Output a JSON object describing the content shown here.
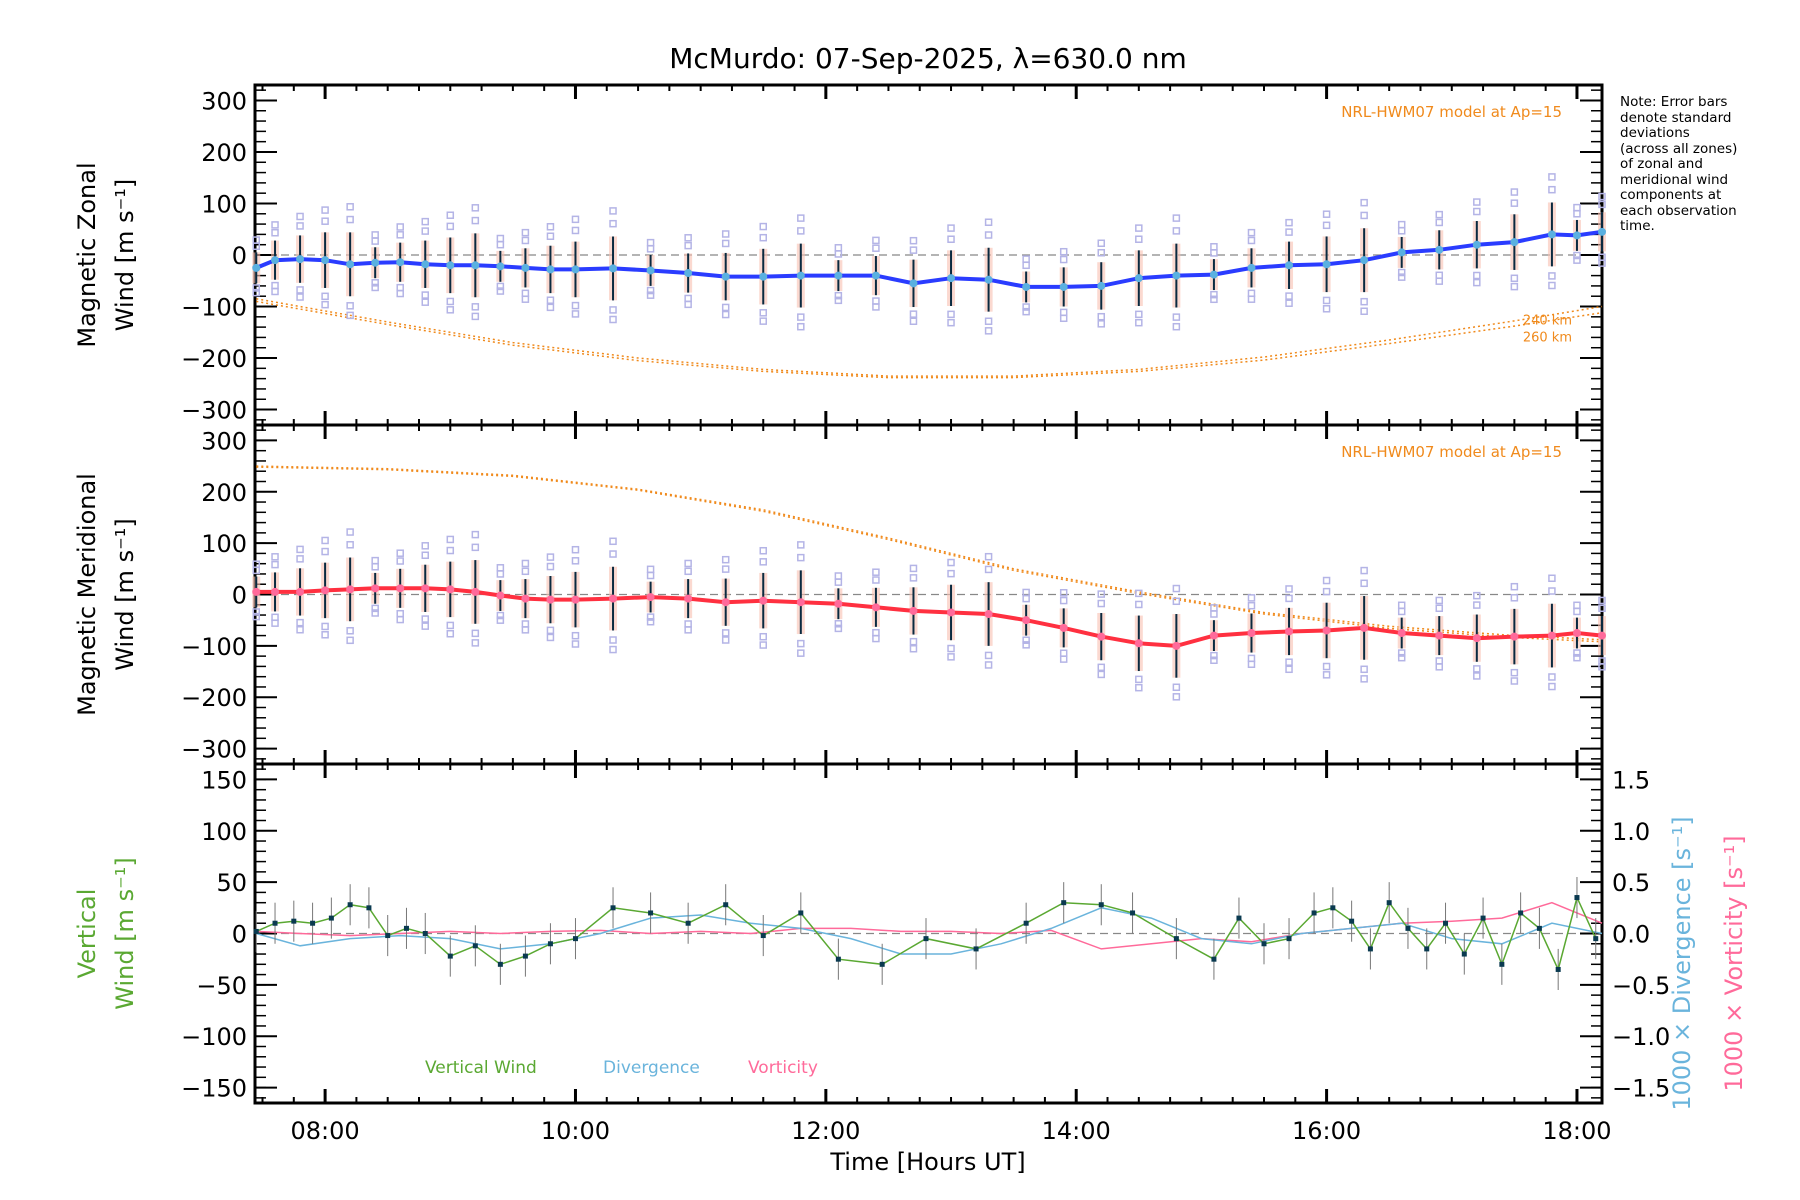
{
  "chart_data": {
    "type": "line",
    "title": "McMurdo: 07-Sep-2025, λ=630.0 nm",
    "xlabel": "Time [Hours UT]",
    "xlim_hours": [
      7.44,
      18.2
    ],
    "x_ticks": [
      {
        "value": 8,
        "label": "08:00"
      },
      {
        "value": 10,
        "label": "10:00"
      },
      {
        "value": 12,
        "label": "12:00"
      },
      {
        "value": 14,
        "label": "14:00"
      },
      {
        "value": 16,
        "label": "16:00"
      },
      {
        "value": 18,
        "label": "18:00"
      }
    ],
    "note": "Note: Error bars denote standard deviations (across all zones) of zonal and meridional wind components at each observation time.",
    "note_lines": [
      "Note: Error bars",
      "denote standard",
      "deviations",
      "(across all zones)",
      "of zonal and",
      "meridional wind",
      "components at",
      "each observation",
      "time."
    ],
    "colors": {
      "zonal": "#2a3cff",
      "zonal_points": "#5ab0e0",
      "meridional": "#ff3040",
      "meridional_points": "#ff6a9a",
      "model": "#f08a1c",
      "vertical": "#5aa832",
      "divergence": "#6ab4dc",
      "vorticity": "#ff6a9a",
      "zone_points": "#b4b4e6",
      "errorbar": "#0a2a40"
    },
    "panels": [
      {
        "id": "zonal",
        "ylabel_line1": "Magnetic Zonal",
        "ylabel_line2": "Wind [m s⁻¹]",
        "ylim": [
          -330,
          330
        ],
        "y_ticks": [
          300,
          200,
          100,
          0,
          -100,
          -200,
          -300
        ],
        "model_label": "NRL-HWM07 model at Ap=15",
        "model_altitudes": [
          "240 km",
          "260 km"
        ],
        "series": [
          {
            "name": "Zonal wind",
            "x": [
              7.45,
              7.6,
              7.8,
              8.0,
              8.2,
              8.4,
              8.6,
              8.8,
              9.0,
              9.2,
              9.4,
              9.6,
              9.8,
              10.0,
              10.3,
              10.6,
              10.9,
              11.2,
              11.5,
              11.8,
              12.1,
              12.4,
              12.7,
              13.0,
              13.3,
              13.6,
              13.9,
              14.2,
              14.5,
              14.8,
              15.1,
              15.4,
              15.7,
              16.0,
              16.3,
              16.6,
              16.9,
              17.2,
              17.5,
              17.8,
              18.0,
              18.2
            ],
            "y": [
              -25,
              -10,
              -8,
              -10,
              -18,
              -15,
              -14,
              -18,
              -20,
              -20,
              -22,
              -25,
              -28,
              -28,
              -26,
              -30,
              -35,
              -42,
              -42,
              -40,
              -40,
              -40,
              -55,
              -45,
              -48,
              -62,
              -62,
              -60,
              -45,
              -40,
              -38,
              -25,
              -20,
              -18,
              -10,
              5,
              10,
              20,
              25,
              40,
              38,
              45
            ]
          },
          {
            "name": "Model 240 km",
            "x": [
              7.45,
              8.5,
              9.5,
              10.5,
              11.5,
              12.5,
              13.5,
              14.5,
              15.5,
              16.5,
              17.5,
              18.2
            ],
            "y": [
              -85,
              -130,
              -170,
              -200,
              -222,
              -235,
              -235,
              -222,
              -198,
              -165,
              -128,
              -100
            ]
          },
          {
            "name": "Model 260 km",
            "x": [
              7.45,
              8.5,
              9.5,
              10.5,
              11.5,
              12.5,
              13.5,
              14.5,
              15.5,
              16.5,
              17.5,
              18.2
            ],
            "y": [
              -90,
              -135,
              -175,
              -205,
              -226,
              -238,
              -238,
              -226,
              -204,
              -172,
              -138,
              -112
            ]
          }
        ]
      },
      {
        "id": "meridional",
        "ylabel_line1": "Magnetic Meridional",
        "ylabel_line2": "Wind [m s⁻¹]",
        "ylim": [
          -330,
          330
        ],
        "y_ticks": [
          300,
          200,
          100,
          0,
          -100,
          -200,
          -300
        ],
        "model_label": "NRL-HWM07 model at Ap=15",
        "series": [
          {
            "name": "Meridional wind",
            "x": [
              7.45,
              7.6,
              7.8,
              8.0,
              8.2,
              8.4,
              8.6,
              8.8,
              9.0,
              9.2,
              9.4,
              9.6,
              9.8,
              10.0,
              10.3,
              10.6,
              10.9,
              11.2,
              11.5,
              11.8,
              12.1,
              12.4,
              12.7,
              13.0,
              13.3,
              13.6,
              13.9,
              14.2,
              14.5,
              14.8,
              15.1,
              15.4,
              15.7,
              16.0,
              16.3,
              16.6,
              16.9,
              17.2,
              17.5,
              17.8,
              18.0,
              18.2
            ],
            "y": [
              5,
              5,
              5,
              8,
              10,
              12,
              12,
              12,
              10,
              5,
              -2,
              -8,
              -10,
              -10,
              -8,
              -5,
              -8,
              -15,
              -12,
              -15,
              -18,
              -25,
              -32,
              -35,
              -38,
              -50,
              -65,
              -82,
              -95,
              -100,
              -80,
              -75,
              -72,
              -70,
              -65,
              -75,
              -80,
              -85,
              -82,
              -80,
              -75,
              -80
            ]
          },
          {
            "name": "Model 240 km",
            "x": [
              7.45,
              8.5,
              9.5,
              10.5,
              11.5,
              12.5,
              13.5,
              14.5,
              15.5,
              16.5,
              17.5,
              18.2
            ],
            "y": [
              250,
              245,
              232,
              205,
              165,
              110,
              50,
              5,
              -35,
              -62,
              -80,
              -88
            ]
          },
          {
            "name": "Model 260 km",
            "x": [
              7.45,
              8.5,
              9.5,
              10.5,
              11.5,
              12.5,
              13.5,
              14.5,
              15.5,
              16.5,
              17.5,
              18.2
            ],
            "y": [
              248,
              243,
              230,
              203,
              162,
              107,
              47,
              2,
              -38,
              -66,
              -84,
              -92
            ]
          }
        ]
      },
      {
        "id": "vertical",
        "ylabel_line1": "Vertical",
        "ylabel_line2": "Wind [m s⁻¹]",
        "ylim": [
          -165,
          165
        ],
        "y_ticks": [
          150,
          100,
          50,
          0,
          -50,
          -100,
          -150
        ],
        "y2label_div": "1000 × Divergence [s⁻¹]",
        "y2label_vort": "1000 × Vorticity [s⁻¹]",
        "y2lim": [
          -1.65,
          1.65
        ],
        "y2_ticks": [
          1.5,
          1.0,
          0.5,
          0.0,
          -0.5,
          -1.0,
          -1.5
        ],
        "legend": [
          "Vertical Wind",
          "Divergence",
          "Vorticity"
        ],
        "series": [
          {
            "name": "Vertical Wind",
            "x": [
              7.45,
              7.6,
              7.75,
              7.9,
              8.05,
              8.2,
              8.35,
              8.5,
              8.65,
              8.8,
              9.0,
              9.2,
              9.4,
              9.6,
              9.8,
              10.0,
              10.3,
              10.6,
              10.9,
              11.2,
              11.5,
              11.8,
              12.1,
              12.45,
              12.8,
              13.2,
              13.6,
              13.9,
              14.2,
              14.45,
              14.8,
              15.1,
              15.3,
              15.5,
              15.7,
              15.9,
              16.05,
              16.2,
              16.35,
              16.5,
              16.65,
              16.8,
              16.95,
              17.1,
              17.25,
              17.4,
              17.55,
              17.7,
              17.85,
              18.0,
              18.15
            ],
            "y": [
              2,
              10,
              12,
              10,
              15,
              28,
              25,
              -2,
              5,
              0,
              -22,
              -12,
              -30,
              -22,
              -10,
              -5,
              25,
              20,
              10,
              28,
              -2,
              20,
              -25,
              -30,
              -5,
              -15,
              10,
              30,
              28,
              20,
              -5,
              -25,
              15,
              -10,
              -5,
              20,
              25,
              12,
              -15,
              30,
              5,
              -15,
              10,
              -20,
              15,
              -30,
              20,
              5,
              -35,
              35,
              -5
            ]
          },
          {
            "name": "Divergence",
            "x": [
              7.45,
              7.8,
              8.2,
              8.6,
              9.0,
              9.4,
              9.8,
              10.2,
              10.6,
              11.0,
              11.4,
              11.8,
              12.2,
              12.6,
              13.0,
              13.4,
              13.8,
              14.2,
              14.6,
              15.0,
              15.4,
              15.8,
              16.2,
              16.6,
              17.0,
              17.4,
              17.8,
              18.2
            ],
            "y": [
              0.0,
              -0.12,
              -0.05,
              -0.02,
              -0.05,
              -0.15,
              -0.1,
              0.0,
              0.15,
              0.18,
              0.1,
              0.05,
              -0.05,
              -0.2,
              -0.2,
              -0.1,
              0.05,
              0.25,
              0.15,
              -0.05,
              -0.1,
              0.0,
              0.05,
              0.1,
              -0.05,
              -0.1,
              0.1,
              0.0
            ]
          },
          {
            "name": "Vorticity",
            "x": [
              7.45,
              7.8,
              8.2,
              8.6,
              9.0,
              9.4,
              9.8,
              10.2,
              10.6,
              11.0,
              11.4,
              11.8,
              12.2,
              12.6,
              13.0,
              13.4,
              13.8,
              14.2,
              14.6,
              15.0,
              15.4,
              15.8,
              16.2,
              16.6,
              17.0,
              17.4,
              17.8,
              18.2
            ],
            "y": [
              0.02,
              0.0,
              -0.02,
              0.0,
              0.02,
              0.0,
              0.02,
              0.03,
              0.0,
              0.02,
              0.0,
              0.05,
              0.05,
              0.02,
              0.02,
              0.0,
              0.03,
              -0.15,
              -0.1,
              -0.05,
              -0.08,
              0.0,
              0.05,
              0.1,
              0.12,
              0.15,
              0.3,
              0.1
            ]
          }
        ]
      }
    ]
  }
}
